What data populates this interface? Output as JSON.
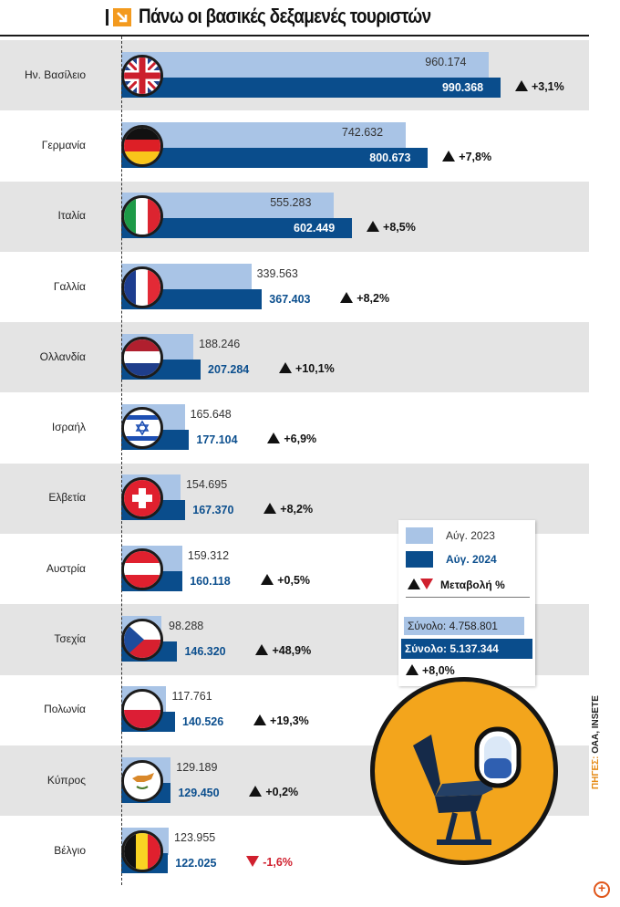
{
  "title": "Πάνω οι βασικές δεξαμενές τουριστών",
  "legend": {
    "label_2023": "Αύγ. 2023",
    "label_2024": "Αύγ. 2024",
    "label_change": "Μεταβολή %",
    "total_2023": "Σύνολο: 4.758.801",
    "total_2024": "Σύνολο: 5.137.344",
    "total_change": "+8,0%"
  },
  "source": {
    "prefix": "ΠΗΓΕΣ:",
    "text": "ΟΑΑ, INSETE"
  },
  "icons": {
    "header": "arrow-icon",
    "badge": "airplane-seat-icon",
    "zoom": "zoom-in-icon"
  },
  "colors": {
    "bar_2023": "#a9c4e6",
    "bar_2024": "#0a4d8c",
    "accent": "#f3a51c",
    "negative": "#d0202e"
  },
  "chart_data": {
    "type": "bar",
    "orientation": "horizontal",
    "title": "Πάνω οι βασικές δεξαμενές τουριστών",
    "xlabel": "",
    "ylabel": "",
    "xlim": [
      0,
      1000000
    ],
    "grid": false,
    "legend_position": "bottom-right",
    "categories": [
      "Ην. Βασίλειο",
      "Γερμανία",
      "Ιταλία",
      "Γαλλία",
      "Ολλανδία",
      "Ισραήλ",
      "Ελβετία",
      "Αυστρία",
      "Τσεχία",
      "Πολωνία",
      "Κύπρος",
      "Βέλγιο"
    ],
    "series": [
      {
        "name": "Αύγ. 2023",
        "values": [
          960174,
          742632,
          555283,
          339563,
          188246,
          165648,
          154695,
          159312,
          98288,
          117761,
          129189,
          123955
        ],
        "labels": [
          "960.174",
          "742.632",
          "555.283",
          "339.563",
          "188.246",
          "165.648",
          "154.695",
          "159.312",
          "98.288",
          "117.761",
          "129.189",
          "123.955"
        ]
      },
      {
        "name": "Αύγ. 2024",
        "values": [
          990368,
          800673,
          602449,
          367403,
          207284,
          177104,
          167370,
          160118,
          146320,
          140526,
          129450,
          122025
        ],
        "labels": [
          "990.368",
          "800.673",
          "602.449",
          "367.403",
          "207.284",
          "177.104",
          "167.370",
          "160.118",
          "146.320",
          "140.526",
          "129.450",
          "122.025"
        ]
      }
    ],
    "change_pct": [
      3.1,
      7.8,
      8.5,
      8.2,
      10.1,
      6.9,
      8.2,
      0.5,
      48.9,
      19.3,
      0.2,
      -1.6
    ],
    "change_labels": [
      "+3,1%",
      "+7,8%",
      "+8,5%",
      "+8,2%",
      "+10,1%",
      "+6,9%",
      "+8,2%",
      "+0,5%",
      "+48,9%",
      "+19,3%",
      "+0,2%",
      "-1,6%"
    ],
    "flags": [
      "uk-flag-icon",
      "germany-flag-icon",
      "italy-flag-icon",
      "france-flag-icon",
      "netherlands-flag-icon",
      "israel-flag-icon",
      "switzerland-flag-icon",
      "austria-flag-icon",
      "czechia-flag-icon",
      "poland-flag-icon",
      "cyprus-flag-icon",
      "belgium-flag-icon"
    ]
  }
}
